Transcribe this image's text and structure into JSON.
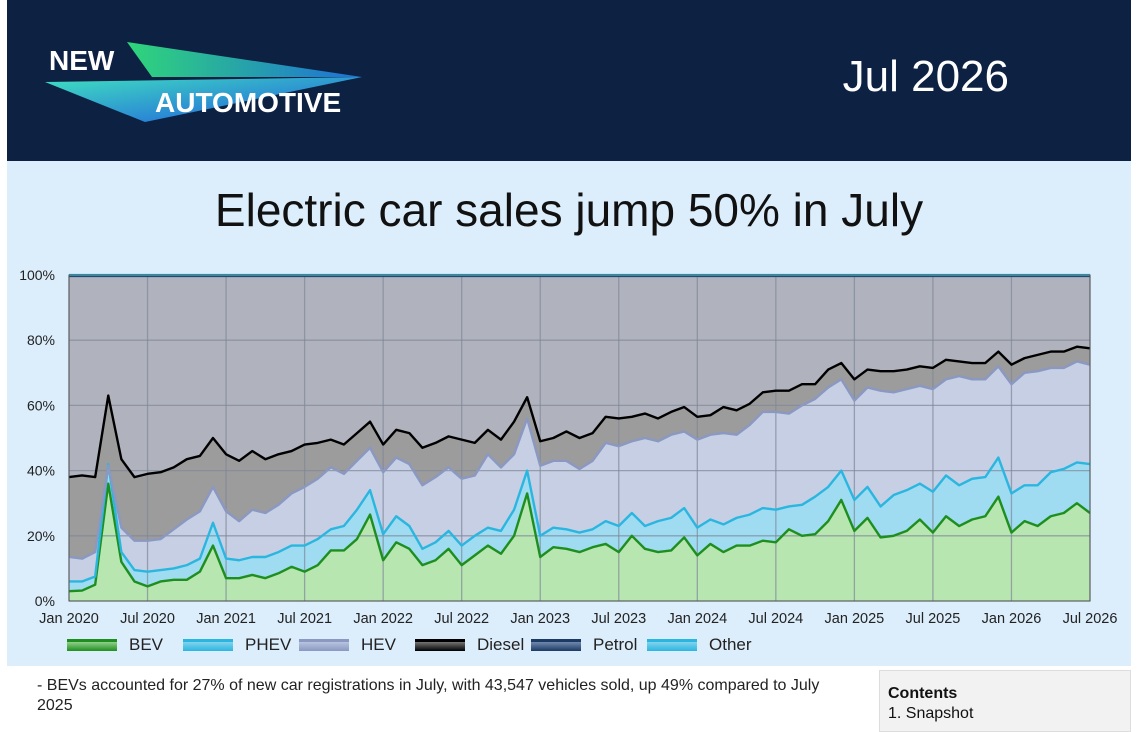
{
  "header": {
    "logo_line1": "NEW",
    "logo_line2": "AUTOMOTIVE",
    "date": "Jul 2026"
  },
  "headline": "Electric car sales jump 50% in July",
  "legend": [
    {
      "label": "BEV",
      "line": "#1e8f1e",
      "fill": "#b8e6b0"
    },
    {
      "label": "PHEV",
      "line": "#2bb6e0",
      "fill": "#9fdcf2"
    },
    {
      "label": "HEV",
      "line": "#8a98c2",
      "fill": "#c8d2e8"
    },
    {
      "label": "Diesel",
      "line": "#000000",
      "fill": "#9c9c9c"
    },
    {
      "label": "Petrol",
      "line": "#1c3a66",
      "fill": "#8ea3c4"
    },
    {
      "label": "Other",
      "line": "#2bb6e0",
      "fill": "#9fdcf2"
    }
  ],
  "footer_text": "- BEVs accounted for 27% of new car registrations in July, with 43,547 vehicles sold, up 49% compared to July 2025",
  "contents": {
    "title": "Contents",
    "item1": "1. Snapshot"
  },
  "chart_data": {
    "type": "area",
    "title": "",
    "xlabel": "",
    "ylabel": "",
    "ylim": [
      0,
      100
    ],
    "yticks": [
      "0%",
      "20%",
      "40%",
      "60%",
      "80%",
      "100%"
    ],
    "xtick_labels": [
      "Jan 2020",
      "Jul 2020",
      "Jan 2021",
      "Jul 2021",
      "Jan 2022",
      "Jul 2022",
      "Jan 2023",
      "Jul 2023",
      "Jan 2024",
      "Jul 2024",
      "Jan 2025",
      "Jul 2025",
      "Jan 2026",
      "Jul 2026"
    ],
    "start_month": "2020-01",
    "stacked_cumulative": true,
    "series": [
      {
        "name": "BEV",
        "values": [
          3,
          3.2,
          5,
          36,
          12,
          6,
          4.5,
          6,
          6.5,
          6.5,
          9,
          17,
          7,
          7,
          8,
          7,
          8.5,
          10.5,
          9,
          11,
          15.5,
          15.5,
          19,
          26.5,
          12.5,
          18,
          16,
          11,
          12.5,
          16,
          11,
          14,
          17,
          14.5,
          20,
          33,
          13.5,
          16.5,
          16,
          15,
          16.5,
          17.5,
          15,
          20,
          16,
          15,
          15.5,
          19.5,
          14,
          17.5,
          15,
          17,
          17,
          18.5,
          18,
          22,
          20,
          20.5,
          24.5,
          31,
          21.5,
          25.5,
          19.5,
          20,
          21.5,
          25,
          21,
          26,
          23,
          25,
          26,
          32,
          21,
          24.5,
          23,
          26,
          27,
          30,
          27
        ]
      },
      {
        "name": "PHEV",
        "values": [
          6,
          6,
          7.5,
          42,
          15,
          9.5,
          9,
          9.5,
          10,
          11,
          13,
          24,
          13,
          12.5,
          13.5,
          13.5,
          15,
          17,
          17,
          19,
          22,
          23,
          28,
          34,
          20.5,
          26,
          23,
          16,
          18,
          21.5,
          17,
          20,
          22.5,
          21.5,
          28,
          40,
          20,
          22.5,
          22,
          21,
          22,
          24.5,
          23,
          27,
          23,
          24.5,
          25.5,
          28.5,
          22.5,
          25,
          23.5,
          25.5,
          26.5,
          28.5,
          28,
          29,
          29.5,
          32,
          35,
          40,
          31,
          35,
          29,
          32.5,
          34,
          36,
          33.5,
          38.5,
          35.5,
          37.5,
          38,
          44,
          33,
          35.5,
          35.5,
          39.5,
          40.5,
          42.5,
          42
        ]
      },
      {
        "name": "HEV",
        "values": [
          13.5,
          13,
          15,
          41.5,
          22.5,
          18.5,
          18.5,
          19,
          22,
          25,
          27.5,
          35,
          27.5,
          24.5,
          28,
          27,
          29.5,
          33,
          35,
          37.5,
          41,
          39,
          43,
          47,
          39.5,
          44,
          42,
          35.5,
          38,
          41,
          37.5,
          38.5,
          45,
          41,
          45,
          56,
          41.5,
          43,
          43,
          40.5,
          43,
          48.5,
          47.5,
          49,
          50,
          49,
          51,
          52,
          49.5,
          51,
          51.5,
          51,
          54,
          58,
          58,
          57.5,
          60,
          62,
          65.5,
          68,
          61.5,
          65.5,
          64.5,
          64,
          65,
          66,
          65,
          68,
          69,
          68,
          68,
          72,
          66.5,
          70,
          70.5,
          71.5,
          71.5,
          73.5,
          72.5
        ]
      },
      {
        "name": "Diesel",
        "values": [
          38,
          38.5,
          38,
          63,
          43.5,
          38,
          39,
          39.5,
          41,
          43.5,
          44.5,
          50,
          45,
          43,
          46,
          43.5,
          45,
          46,
          48,
          48.5,
          49.5,
          48,
          51.5,
          55,
          48,
          52.5,
          51.5,
          47,
          48.5,
          50.5,
          49.5,
          48.5,
          52.5,
          49.5,
          55,
          62.5,
          49,
          50,
          52,
          50,
          51.5,
          56.5,
          56,
          56.5,
          57.5,
          56,
          58,
          59.5,
          56.5,
          57,
          59.5,
          58.5,
          60.5,
          64,
          64.5,
          64.5,
          66.5,
          66.5,
          71,
          73,
          68,
          71,
          70.5,
          70.5,
          71,
          72,
          71.5,
          74,
          73.5,
          73,
          73,
          76.5,
          72.5,
          74.5,
          75.5,
          76.5,
          76.5,
          78,
          77.5
        ]
      },
      {
        "name": "Petrol",
        "values": [
          99.7,
          99.7,
          99.7,
          99.7,
          99.7,
          99.7,
          99.7,
          99.7,
          99.7,
          99.7,
          99.7,
          99.7,
          99.7,
          99.7,
          99.7,
          99.7,
          99.7,
          99.7,
          99.7,
          99.7,
          99.7,
          99.7,
          99.7,
          99.7,
          99.7,
          99.7,
          99.7,
          99.7,
          99.7,
          99.7,
          99.7,
          99.7,
          99.7,
          99.7,
          99.7,
          99.7,
          99.7,
          99.7,
          99.7,
          99.7,
          99.7,
          99.7,
          99.7,
          99.7,
          99.7,
          99.7,
          99.7,
          99.7,
          99.7,
          99.7,
          99.7,
          99.7,
          99.7,
          99.7,
          99.7,
          99.7,
          99.7,
          99.7,
          99.7,
          99.7,
          99.7,
          99.7,
          99.7,
          99.7,
          99.7,
          99.7,
          99.7,
          99.7,
          99.7,
          99.7,
          99.7,
          99.7,
          99.7,
          99.7,
          99.7,
          99.7,
          99.7,
          99.7,
          99.7
        ]
      },
      {
        "name": "Other",
        "values": [
          100,
          100,
          100,
          100,
          100,
          100,
          100,
          100,
          100,
          100,
          100,
          100,
          100,
          100,
          100,
          100,
          100,
          100,
          100,
          100,
          100,
          100,
          100,
          100,
          100,
          100,
          100,
          100,
          100,
          100,
          100,
          100,
          100,
          100,
          100,
          100,
          100,
          100,
          100,
          100,
          100,
          100,
          100,
          100,
          100,
          100,
          100,
          100,
          100,
          100,
          100,
          100,
          100,
          100,
          100,
          100,
          100,
          100,
          100,
          100,
          100,
          100,
          100,
          100,
          100,
          100,
          100,
          100,
          100,
          100,
          100,
          100,
          100,
          100,
          100,
          100,
          100,
          100,
          100
        ]
      }
    ]
  }
}
